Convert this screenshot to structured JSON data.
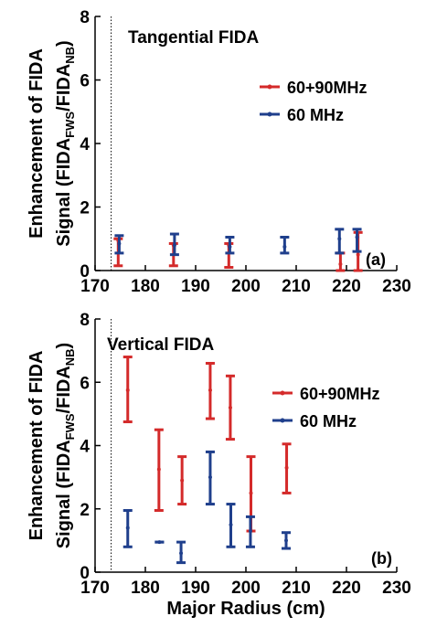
{
  "colors": {
    "red": "#d42a2a",
    "blue": "#1f3f8c",
    "axis": "#000000"
  },
  "chart_data": [
    {
      "type": "scatter",
      "title": "Tangential FIDA",
      "panel_label": "(a)",
      "ylabel_line1": "Enhancement of FIDA",
      "ylabel_line2_parts": [
        "Signal (FIDA",
        "FWS",
        "/FIDA",
        "NB",
        ")"
      ],
      "xlabel": "",
      "xlim": [
        170,
        230
      ],
      "ylim": [
        0,
        8
      ],
      "xticks": [
        "170",
        "180",
        "190",
        "200",
        "210",
        "220",
        "230"
      ],
      "yticks": [
        "0",
        "2",
        "4",
        "6",
        "8"
      ],
      "vline_x": 173.2,
      "legend_position": "upper-right",
      "series": [
        {
          "name": "60+90MHz",
          "color": "red",
          "points": [
            {
              "x": 174.6,
              "y": 0.95,
              "low": 0.15,
              "high": 1.0
            },
            {
              "x": 185.6,
              "y": 0.8,
              "low": 0.15,
              "high": 0.85
            },
            {
              "x": 196.6,
              "y": 0.8,
              "low": 0.1,
              "high": 0.85
            },
            {
              "x": 218.8,
              "y": 0.2,
              "low": 0.0,
              "high": 0.55
            },
            {
              "x": 222.3,
              "y": 0.5,
              "low": 0.0,
              "high": 1.2
            }
          ]
        },
        {
          "name": "60 MHz",
          "color": "blue",
          "points": [
            {
              "x": 174.8,
              "y": 0.85,
              "low": 0.55,
              "high": 1.1
            },
            {
              "x": 185.8,
              "y": 0.8,
              "low": 0.5,
              "high": 1.15
            },
            {
              "x": 196.8,
              "y": 0.75,
              "low": 0.55,
              "high": 1.05
            },
            {
              "x": 207.7,
              "y": 0.75,
              "low": 0.55,
              "high": 1.05
            },
            {
              "x": 218.6,
              "y": 1.0,
              "low": 0.55,
              "high": 1.3
            },
            {
              "x": 222.1,
              "y": 1.05,
              "low": 0.6,
              "high": 1.3
            }
          ]
        }
      ]
    },
    {
      "type": "scatter",
      "title": "Vertical FIDA",
      "panel_label": "(b)",
      "ylabel_line1": "Enhancement of FIDA",
      "ylabel_line2_parts": [
        "Signal (FIDA",
        "FWS",
        "/FIDA",
        "NB",
        ")"
      ],
      "xlabel": "Major Radius (cm)",
      "xlim": [
        170,
        230
      ],
      "ylim": [
        0,
        8
      ],
      "xticks": [
        "170",
        "180",
        "190",
        "200",
        "210",
        "220",
        "230"
      ],
      "yticks": [
        "0",
        "2",
        "4",
        "6",
        "8"
      ],
      "vline_x": 173.2,
      "legend_position": "upper-right",
      "series": [
        {
          "name": "60+90MHz",
          "color": "red",
          "points": [
            {
              "x": 176.5,
              "y": 5.75,
              "low": 4.75,
              "high": 6.8
            },
            {
              "x": 182.7,
              "y": 3.25,
              "low": 1.95,
              "high": 4.5
            },
            {
              "x": 187.3,
              "y": 2.9,
              "low": 2.15,
              "high": 3.65
            },
            {
              "x": 192.9,
              "y": 5.75,
              "low": 4.85,
              "high": 6.6
            },
            {
              "x": 196.9,
              "y": 5.2,
              "low": 4.2,
              "high": 6.2
            },
            {
              "x": 201.0,
              "y": 2.5,
              "low": 1.3,
              "high": 3.65
            },
            {
              "x": 208.1,
              "y": 3.3,
              "low": 2.5,
              "high": 4.05
            }
          ]
        },
        {
          "name": "60 MHz",
          "color": "blue",
          "points": [
            {
              "x": 176.5,
              "y": 1.4,
              "low": 0.8,
              "high": 1.95
            },
            {
              "x": 182.8,
              "y": 0.95,
              "low": 0.95,
              "high": 0.95
            },
            {
              "x": 187.1,
              "y": 0.6,
              "low": 0.3,
              "high": 0.95
            },
            {
              "x": 192.9,
              "y": 3.0,
              "low": 2.15,
              "high": 3.8
            },
            {
              "x": 197.0,
              "y": 1.5,
              "low": 0.8,
              "high": 2.15
            },
            {
              "x": 200.9,
              "y": 1.3,
              "low": 0.8,
              "high": 1.75
            },
            {
              "x": 208.0,
              "y": 1.0,
              "low": 0.75,
              "high": 1.25
            }
          ]
        }
      ]
    }
  ]
}
